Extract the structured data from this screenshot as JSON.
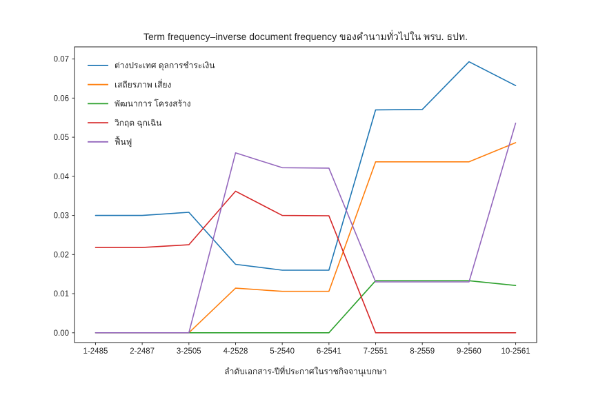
{
  "chart_data": {
    "type": "line",
    "title": "Term frequency–inverse document frequency ของคำนามทั่วไปใน พรบ. ธปท.",
    "xlabel": "ลำดับเอกสาร-ปีที่ประกาศในราชกิจจานุเบกษา",
    "ylabel": "",
    "categories": [
      "1-2485",
      "2-2487",
      "3-2505",
      "4-2528",
      "5-2540",
      "6-2541",
      "7-2551",
      "8-2559",
      "9-2560",
      "10-2561"
    ],
    "series": [
      {
        "name": "ต่างประเทศ ดุลการชำระเงิน",
        "color": "#1f77b4",
        "values": [
          0.03,
          0.03,
          0.0308,
          0.0175,
          0.016,
          0.016,
          0.057,
          0.0571,
          0.0693,
          0.0632
        ]
      },
      {
        "name": "เสถียรภาพ เสี่ยง",
        "color": "#ff7f0e",
        "values": [
          0.0,
          0.0,
          0.0,
          0.0114,
          0.0106,
          0.0106,
          0.0437,
          0.0437,
          0.0437,
          0.0486
        ]
      },
      {
        "name": "พัฒนาการ โครงสร้าง",
        "color": "#2ca02c",
        "values": [
          0.0,
          0.0,
          0.0,
          0.0,
          0.0,
          0.0,
          0.0133,
          0.0133,
          0.0133,
          0.0121
        ]
      },
      {
        "name": "วิกฤต ฉุกเฉิน",
        "color": "#d62728",
        "values": [
          0.0218,
          0.0218,
          0.0225,
          0.0362,
          0.03,
          0.0299,
          0.0,
          0.0,
          0.0,
          0.0
        ]
      },
      {
        "name": "ฟื้นฟู",
        "color": "#9467bd",
        "values": [
          0.0,
          0.0,
          0.0,
          0.046,
          0.0422,
          0.0421,
          0.013,
          0.013,
          0.013,
          0.0536
        ]
      }
    ],
    "ytick_values": [
      0.0,
      0.01,
      0.02,
      0.03,
      0.04,
      0.05,
      0.06,
      0.07
    ],
    "ytick_labels": [
      "0.00",
      "0.01",
      "0.02",
      "0.03",
      "0.04",
      "0.05",
      "0.06",
      "0.07"
    ],
    "ylim": [
      -0.0025,
      0.0731
    ],
    "grid": false,
    "legend_position": "upper left",
    "axis_color": "#262626",
    "background": "#ffffff"
  }
}
